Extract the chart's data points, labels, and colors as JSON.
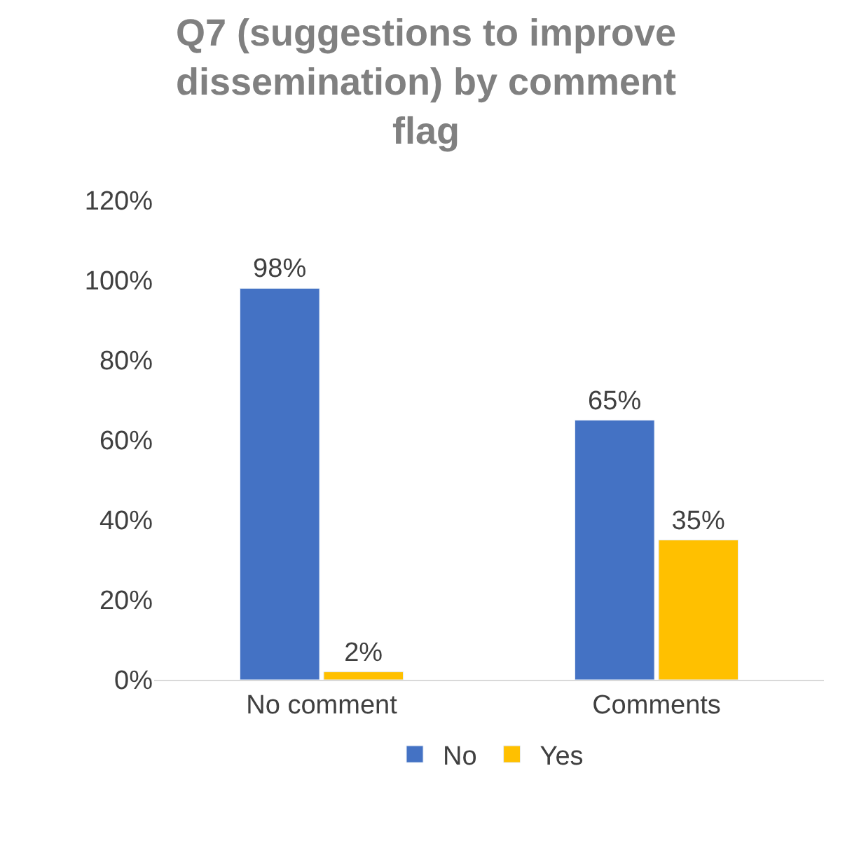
{
  "chart_data": {
    "type": "bar",
    "title": "Q7 (suggestions to improve dissemination) by comment flag",
    "categories": [
      "No comment",
      "Comments"
    ],
    "series": [
      {
        "name": "No",
        "color": "#4472c4",
        "values": [
          98,
          65
        ],
        "value_labels": [
          "98%",
          "65%"
        ]
      },
      {
        "name": "Yes",
        "color": "#ffc000",
        "values": [
          2,
          35
        ],
        "value_labels": [
          "2%",
          "35%"
        ]
      }
    ],
    "ylim": [
      0,
      120
    ],
    "yticks": [
      {
        "value": 0,
        "label": "0%"
      },
      {
        "value": 20,
        "label": "20%"
      },
      {
        "value": 40,
        "label": "40%"
      },
      {
        "value": 60,
        "label": "60%"
      },
      {
        "value": 80,
        "label": "80%"
      },
      {
        "value": 100,
        "label": "100%"
      },
      {
        "value": 120,
        "label": "120%"
      }
    ],
    "grid": false,
    "legend": "bottom"
  }
}
